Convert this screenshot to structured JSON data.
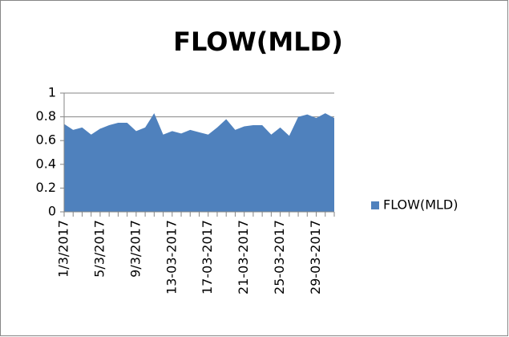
{
  "chart_data": {
    "type": "area",
    "title": "FLOW(MLD)",
    "categories": [
      "1/3/2017",
      null,
      null,
      null,
      "5/3/2017",
      null,
      null,
      null,
      "9/3/2017",
      null,
      null,
      null,
      "13-03-2017",
      null,
      null,
      null,
      "17-03-2017",
      null,
      null,
      null,
      "21-03-2017",
      null,
      null,
      null,
      "25-03-2017",
      null,
      null,
      null,
      "29-03-2017",
      null,
      null
    ],
    "series": [
      {
        "name": "FLOW(MLD)",
        "color": "#4f81bd",
        "values": [
          0.74,
          0.69,
          0.71,
          0.65,
          0.7,
          0.73,
          0.75,
          0.75,
          0.68,
          0.71,
          0.83,
          0.65,
          0.68,
          0.66,
          0.69,
          0.67,
          0.65,
          0.71,
          0.78,
          0.69,
          0.72,
          0.73,
          0.73,
          0.65,
          0.71,
          0.64,
          0.8,
          0.82,
          0.79,
          0.83,
          0.79
        ]
      }
    ],
    "ylim": [
      0,
      1
    ],
    "yticks": [
      0,
      0.2,
      0.4,
      0.6,
      0.8,
      1
    ],
    "grid": true,
    "legend": "right"
  }
}
